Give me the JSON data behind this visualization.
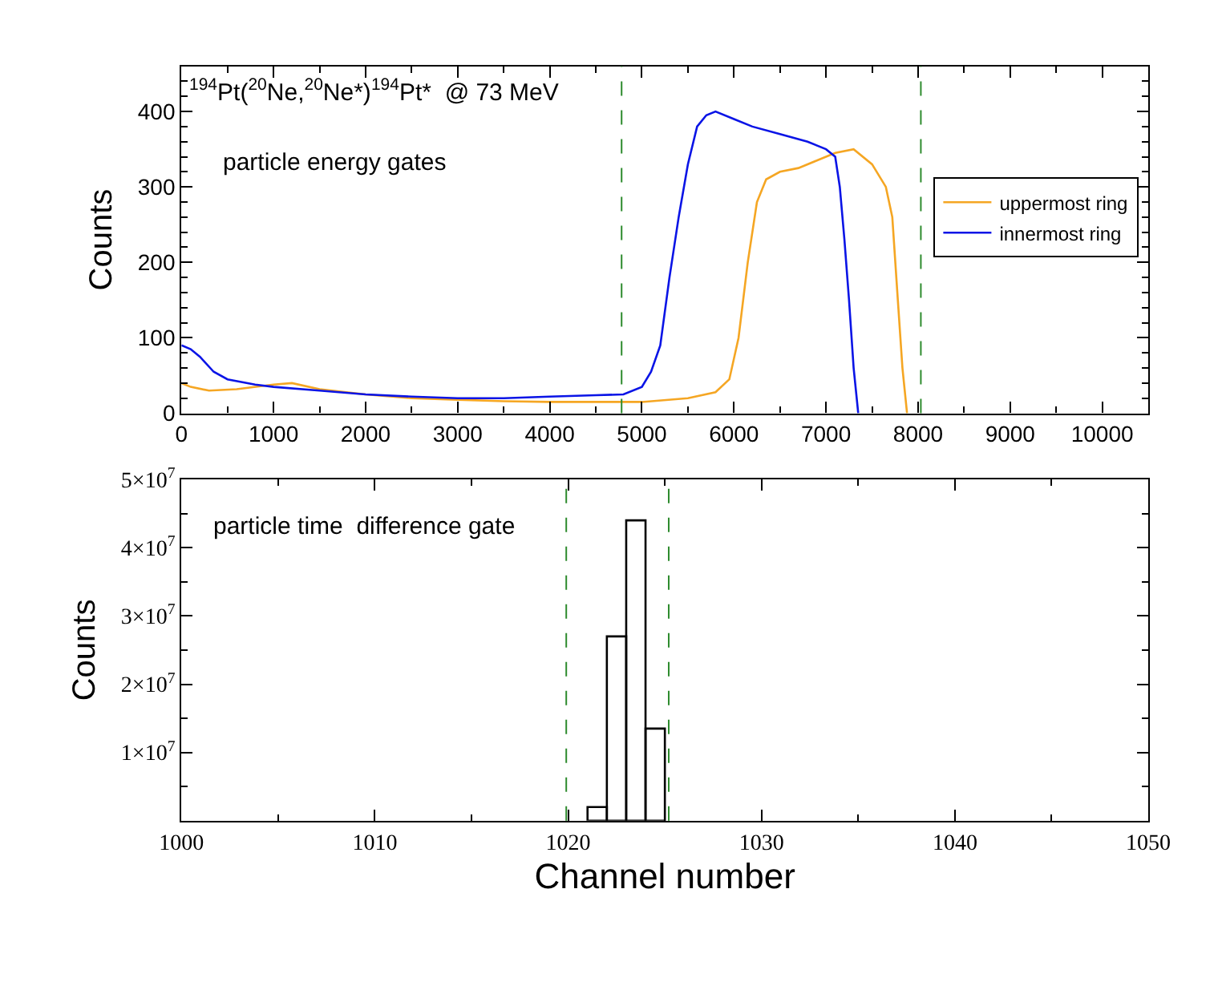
{
  "chart_data": [
    {
      "type": "line",
      "ylabel": "Counts",
      "annotations": [
        "$^{194}$Pt($^{20}$Ne,$^{20}$Ne*)$^{194}$Pt*  @ 73 MeV",
        "particle energy gates"
      ],
      "series": [
        {
          "name": "uppermost ring",
          "color": "#f5a623",
          "x": [
            0,
            100,
            300,
            600,
            1000,
            1200,
            1500,
            2000,
            2500,
            3000,
            3500,
            4000,
            4500,
            5000,
            5500,
            5800,
            5950,
            6050,
            6150,
            6250,
            6350,
            6500,
            6700,
            6900,
            7100,
            7300,
            7500,
            7650,
            7720,
            7780,
            7830,
            7880
          ],
          "values": [
            40,
            35,
            30,
            32,
            38,
            40,
            32,
            25,
            20,
            18,
            16,
            15,
            15,
            15,
            20,
            28,
            45,
            100,
            200,
            280,
            310,
            320,
            325,
            335,
            345,
            350,
            330,
            300,
            260,
            150,
            60,
            0
          ]
        },
        {
          "name": "innermost ring",
          "color": "#0a14e6",
          "x": [
            0,
            100,
            200,
            350,
            500,
            800,
            1000,
            1500,
            2000,
            2500,
            3000,
            3500,
            4000,
            4500,
            4800,
            5000,
            5100,
            5200,
            5300,
            5400,
            5500,
            5600,
            5700,
            5800,
            6000,
            6200,
            6500,
            6800,
            7000,
            7100,
            7150,
            7200,
            7250,
            7300,
            7350
          ],
          "values": [
            90,
            85,
            75,
            55,
            45,
            38,
            35,
            30,
            25,
            22,
            20,
            20,
            22,
            24,
            25,
            35,
            55,
            90,
            180,
            260,
            330,
            380,
            395,
            400,
            390,
            380,
            370,
            360,
            350,
            340,
            300,
            230,
            150,
            60,
            0
          ]
        }
      ],
      "xlim": [
        0,
        10500
      ],
      "xticks": [
        0,
        1000,
        2000,
        3000,
        4000,
        5000,
        6000,
        7000,
        8000,
        9000,
        10000
      ],
      "ylim": [
        0,
        460
      ],
      "yticks": [
        0,
        100,
        200,
        300,
        400
      ],
      "ref_lines": [
        {
          "axis": "x",
          "value": 4780,
          "color": "#2e8b2e",
          "line_style": "dashed"
        },
        {
          "axis": "x",
          "value": 8030,
          "color": "#2e8b2e",
          "line_style": "dashed"
        }
      ],
      "legend": "top right",
      "marker": "none",
      "line_style": "solid"
    },
    {
      "type": "histogram",
      "xlabel": "Channel number",
      "ylabel": "Counts",
      "annotations": [
        "particle time  difference gate"
      ],
      "bins": [
        1021,
        1022,
        1023,
        1024,
        1025
      ],
      "values": [
        2000000,
        27000000,
        44000000,
        13500000
      ],
      "color": "#000000",
      "xlim": [
        1000,
        1050
      ],
      "xticks": [
        1000,
        1010,
        1020,
        1030,
        1040,
        1050
      ],
      "ylim": [
        0,
        50000000
      ],
      "yticks": [
        {
          "value": 10000000,
          "label": "1×10$^{7}$"
        },
        {
          "value": 20000000,
          "label": "2×10$^{7}$"
        },
        {
          "value": 30000000,
          "label": "3×10$^{7}$"
        },
        {
          "value": 40000000,
          "label": "4×10$^{7}$"
        },
        {
          "value": 50000000,
          "label": "5×10$^{7}$"
        }
      ],
      "ref_lines": [
        {
          "axis": "x",
          "value": 1019.9,
          "color": "#2e8b2e",
          "line_style": "dashed"
        },
        {
          "axis": "x",
          "value": 1025.2,
          "color": "#2e8b2e",
          "line_style": "dashed"
        }
      ]
    }
  ]
}
